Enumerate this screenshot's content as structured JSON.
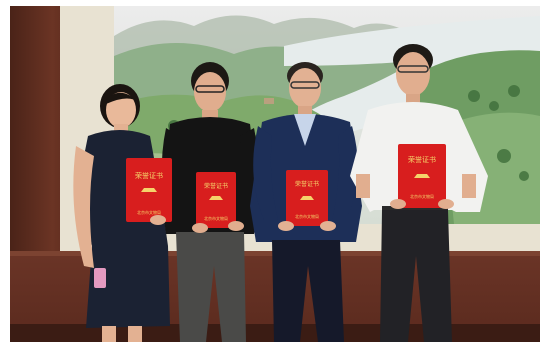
{
  "scene": {
    "description_icon": "group-photo",
    "colors": {
      "certificate": "#d81e1e",
      "wall": "#5a2a1d",
      "painting_water": "#e3e9ea",
      "painting_green": "#7faa6b"
    },
    "people": [
      {
        "name_icon": "woman-black-dress"
      },
      {
        "name_icon": "man-black-shirt"
      },
      {
        "name_icon": "man-blue-jacket"
      },
      {
        "name_icon": "man-white-shirt"
      }
    ],
    "certificates": [
      {
        "title": "荣誉证书",
        "issuer": "北京市文物局"
      },
      {
        "title": "荣誉证书",
        "issuer": "北京市文物局"
      },
      {
        "title": "荣誉证书",
        "issuer": "北京市文物局"
      },
      {
        "title": "荣誉证书",
        "issuer": "北京市文物局"
      }
    ]
  }
}
